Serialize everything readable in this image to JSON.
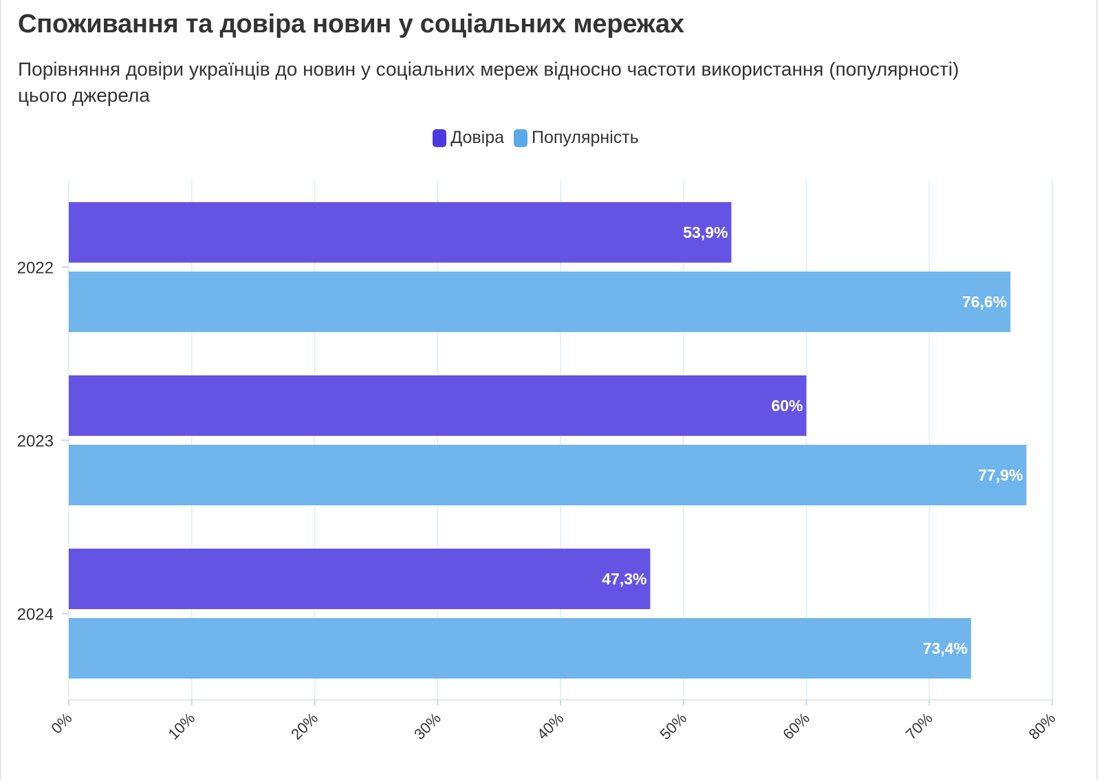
{
  "chart_data": {
    "type": "bar",
    "orientation": "horizontal",
    "title": "Споживання та довіра новин у соціальних мережах",
    "subtitle": "Порівняння довіри українців до новин у соціальних мереж відносно частоти використання (популярності) цього джерела",
    "categories": [
      "2022",
      "2023",
      "2024"
    ],
    "series": [
      {
        "name": "Довіра",
        "values": [
          53.9,
          60,
          47.3
        ],
        "labels": [
          "53,9%",
          "60%",
          "47,3%"
        ],
        "color": "#4b38de"
      },
      {
        "name": "Популярність",
        "values": [
          76.6,
          77.9,
          73.4
        ],
        "labels": [
          "76,6%",
          "77,9%",
          "73,4%"
        ],
        "color": "#5ba8e8"
      }
    ],
    "xlim": [
      0,
      80
    ],
    "xticks": [
      0,
      10,
      20,
      30,
      40,
      50,
      60,
      70,
      80
    ],
    "xtick_labels": [
      "0%",
      "10%",
      "20%",
      "30%",
      "40%",
      "50%",
      "60%",
      "70%",
      "80%"
    ],
    "grid": true,
    "legend_position": "top-center"
  }
}
